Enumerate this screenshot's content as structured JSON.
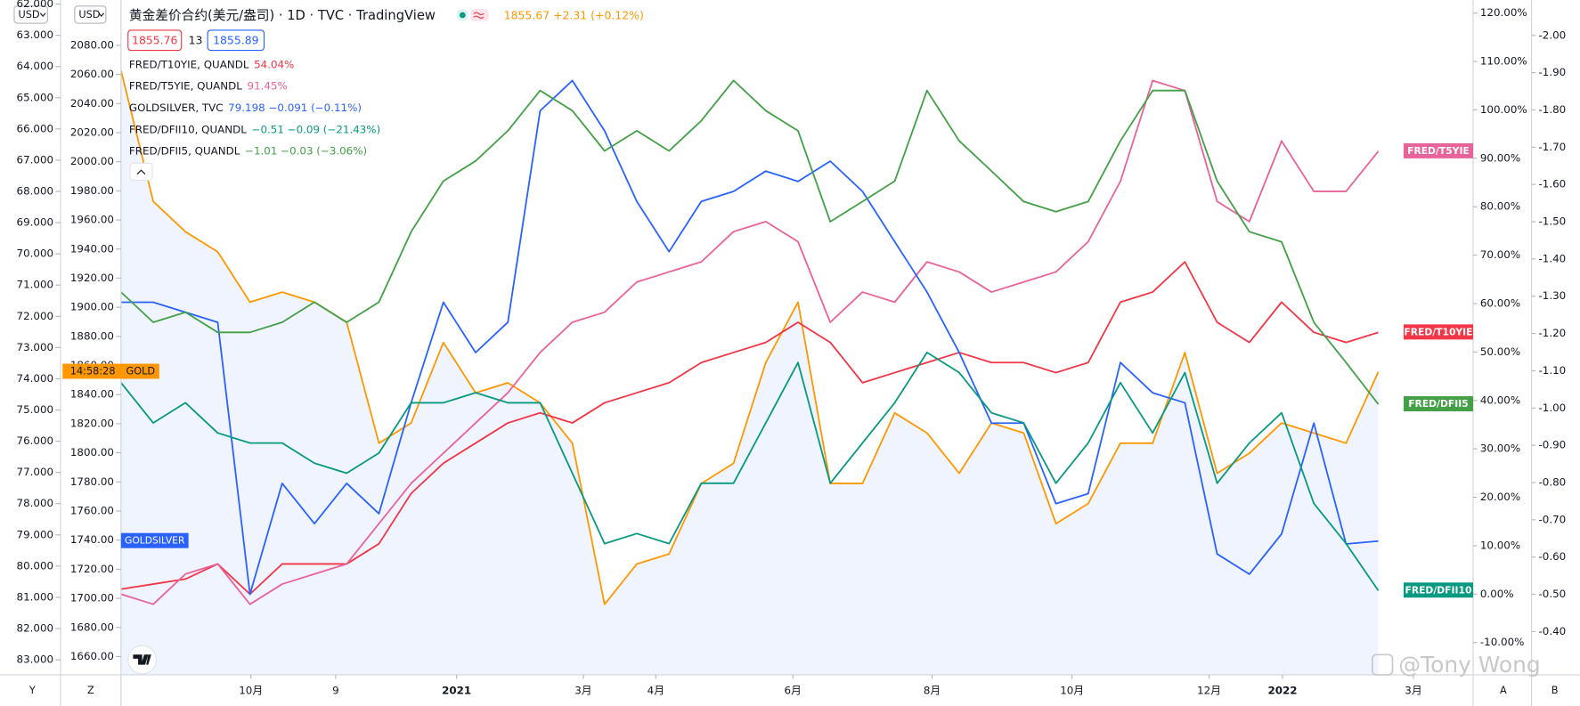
{
  "header": {
    "title": "黄金差价合约(美元/盎司) · 1D · TVC · TradingView",
    "quote": "1855.67  +2.31 (+0.12%)",
    "bid": "1855.76",
    "spread": "13",
    "ask": "1855.89",
    "currency_1": "USD",
    "currency_2": "USD"
  },
  "chart_data": {
    "type": "line",
    "x": [
      0,
      1,
      2,
      3,
      4,
      5,
      6,
      7,
      8,
      9,
      10,
      11,
      12,
      13,
      14,
      15,
      16,
      17,
      18,
      19,
      20,
      21,
      22,
      23,
      24,
      25,
      26,
      27,
      28,
      29,
      30,
      31,
      32,
      33,
      34,
      35,
      36,
      37,
      38,
      39
    ],
    "xlim": [
      0,
      41.94
    ],
    "xticks": [
      {
        "value": 4.03,
        "label": "10月"
      },
      {
        "value": 6.66,
        "label": "9"
      },
      {
        "value": 10.41,
        "label": "2021"
      },
      {
        "value": 14.34,
        "label": "3月"
      },
      {
        "value": 16.59,
        "label": "4月"
      },
      {
        "value": 20.84,
        "label": "6月"
      },
      {
        "value": 25.16,
        "label": "8月"
      },
      {
        "value": 29.5,
        "label": "10月"
      },
      {
        "value": 33.75,
        "label": "12月"
      },
      {
        "value": 36.03,
        "label": "2022"
      },
      {
        "value": 40.09,
        "label": "3月"
      }
    ],
    "grid": false,
    "axes": {
      "goldsilver": {
        "lim": [
          83.48,
          61.87
        ],
        "ticks": [
          {
            "value": 62,
            "label": "62.000"
          },
          {
            "value": 63,
            "label": "63.000"
          },
          {
            "value": 64,
            "label": "64.000"
          },
          {
            "value": 65,
            "label": "65.000"
          },
          {
            "value": 66,
            "label": "66.000"
          },
          {
            "value": 67,
            "label": "67.000"
          },
          {
            "value": 68,
            "label": "68.000"
          },
          {
            "value": 69,
            "label": "69.000"
          },
          {
            "value": 70,
            "label": "70.000"
          },
          {
            "value": 71,
            "label": "71.000"
          },
          {
            "value": 72,
            "label": "72.000"
          },
          {
            "value": 73,
            "label": "73.000"
          },
          {
            "value": 74,
            "label": "74.000"
          },
          {
            "value": 75,
            "label": "75.000"
          },
          {
            "value": 76,
            "label": "76.000"
          },
          {
            "value": 77,
            "label": "77.000"
          },
          {
            "value": 78,
            "label": "78.000"
          },
          {
            "value": 79,
            "label": "79.000"
          },
          {
            "value": 80,
            "label": "80.000"
          },
          {
            "value": 81,
            "label": "81.000"
          },
          {
            "value": 82,
            "label": "82.000"
          },
          {
            "value": 83,
            "label": "83.000"
          }
        ]
      },
      "gold": {
        "lim": [
          1647.47,
          2111.14
        ],
        "ticks": [
          {
            "value": 2080,
            "label": "2080.00"
          },
          {
            "value": 2060,
            "label": "2060.00"
          },
          {
            "value": 2040,
            "label": "2040.00"
          },
          {
            "value": 2020,
            "label": "2020.00"
          },
          {
            "value": 2000,
            "label": "2000.00"
          },
          {
            "value": 1980,
            "label": "1980.00"
          },
          {
            "value": 1960,
            "label": "1960.00"
          },
          {
            "value": 1940,
            "label": "1940.00"
          },
          {
            "value": 1920,
            "label": "1920.00"
          },
          {
            "value": 1900,
            "label": "1900.00"
          },
          {
            "value": 1880,
            "label": "1880.00"
          },
          {
            "value": 1860,
            "label": "1860.00"
          },
          {
            "value": 1840,
            "label": "1840.00"
          },
          {
            "value": 1820,
            "label": "1820.00"
          },
          {
            "value": 1800,
            "label": "1800.00"
          },
          {
            "value": 1780,
            "label": "1780.00"
          },
          {
            "value": 1760,
            "label": "1760.00"
          },
          {
            "value": 1740,
            "label": "1740.00"
          },
          {
            "value": 1720,
            "label": "1720.00"
          },
          {
            "value": 1700,
            "label": "1700.00"
          },
          {
            "value": 1680,
            "label": "1680.00"
          },
          {
            "value": 1660,
            "label": "1660.00"
          }
        ]
      },
      "percent": {
        "lim": [
          -16.66,
          122.7
        ],
        "ticks": [
          {
            "value": 120,
            "label": "120.00%"
          },
          {
            "value": 110,
            "label": "110.00%"
          },
          {
            "value": 100,
            "label": "100.00%"
          },
          {
            "value": 90,
            "label": "90.00%"
          },
          {
            "value": 80,
            "label": "80.00%"
          },
          {
            "value": 70,
            "label": "70.00%"
          },
          {
            "value": 60,
            "label": "60.00%"
          },
          {
            "value": 50,
            "label": "50.00%"
          },
          {
            "value": 40,
            "label": "40.00%"
          },
          {
            "value": 30,
            "label": "30.00%"
          },
          {
            "value": 20,
            "label": "20.00%"
          },
          {
            "value": 10,
            "label": "10.00%"
          },
          {
            "value": 0,
            "label": "0.00%"
          },
          {
            "value": -10,
            "label": "-10.00%"
          }
        ]
      },
      "dfii": {
        "lim": [
          -0.284,
          -2.095
        ],
        "ticks": [
          {
            "value": -2,
            "label": "-2.00"
          },
          {
            "value": -1.9,
            "label": "-1.90"
          },
          {
            "value": -1.8,
            "label": "-1.80"
          },
          {
            "value": -1.7,
            "label": "-1.70"
          },
          {
            "value": -1.6,
            "label": "-1.60"
          },
          {
            "value": -1.5,
            "label": "-1.50"
          },
          {
            "value": -1.4,
            "label": "-1.40"
          },
          {
            "value": -1.3,
            "label": "-1.30"
          },
          {
            "value": -1.2,
            "label": "-1.20"
          },
          {
            "value": -1.1,
            "label": "-1.10"
          },
          {
            "value": -1,
            "label": "-1.00"
          },
          {
            "value": -0.9,
            "label": "-0.90"
          },
          {
            "value": -0.8,
            "label": "-0.80"
          },
          {
            "value": -0.7,
            "label": "-0.70"
          },
          {
            "value": -0.6,
            "label": "-0.60"
          },
          {
            "value": -0.5,
            "label": "-0.50"
          },
          {
            "value": -0.4,
            "label": "-0.40"
          }
        ]
      }
    },
    "series": [
      {
        "name": "GOLD",
        "countdown": "14:58:28",
        "color": "#ff9800",
        "axis": "gold",
        "area": true,
        "values": [
          2062.7,
          1972.7,
          1951.9,
          1938.1,
          1903.5,
          1910.4,
          1903.5,
          1889.7,
          1806.6,
          1820.5,
          1875.8,
          1841.2,
          1848.1,
          1834.3,
          1806.6,
          1695.9,
          1723.6,
          1730.5,
          1778.9,
          1792.8,
          1862.0,
          1903.5,
          1778.9,
          1778.9,
          1827.4,
          1813.6,
          1785.9,
          1820.5,
          1813.6,
          1751.3,
          1765.1,
          1806.6,
          1806.6,
          1868.9,
          1785.9,
          1799.7,
          1820.5,
          1813.6,
          1806.6,
          1855.67
        ]
      },
      {
        "name": "FRED/T10YIE",
        "legend": "FRED/T10YIE, QUANDL",
        "legend_value": "54.04%",
        "color": "#f23645",
        "axis": "percent",
        "values": [
          1.03,
          2.07,
          3.11,
          6.23,
          -0.01,
          6.23,
          6.23,
          6.23,
          10.39,
          20.79,
          27.03,
          31.19,
          35.35,
          37.43,
          35.35,
          39.51,
          41.58,
          43.66,
          47.82,
          49.9,
          51.98,
          56.14,
          51.98,
          43.66,
          45.74,
          47.82,
          49.9,
          47.82,
          47.82,
          45.74,
          47.82,
          60.3,
          62.38,
          68.62,
          56.14,
          51.98,
          60.3,
          54.06,
          51.98,
          54.04
        ]
      },
      {
        "name": "FRED/T5YIE",
        "legend": "FRED/T5YIE, QUANDL",
        "legend_value": "91.45%",
        "color": "#e8639a",
        "axis": "percent",
        "values": [
          -0.01,
          -2.09,
          4.15,
          6.23,
          -2.09,
          2.07,
          4.15,
          6.23,
          14.55,
          22.87,
          29.11,
          35.35,
          41.58,
          49.9,
          56.14,
          58.22,
          64.46,
          66.54,
          68.62,
          74.86,
          76.94,
          72.78,
          56.14,
          62.38,
          60.3,
          68.62,
          66.54,
          62.38,
          64.46,
          66.54,
          72.78,
          85.26,
          106.06,
          103.98,
          81.1,
          76.94,
          93.58,
          83.18,
          83.18,
          91.45
        ]
      },
      {
        "name": "GOLDSILVER",
        "legend": "GOLDSILVER, TVC",
        "legend_value": "79.198  −0.091 (−0.11%)",
        "color": "#2962ff",
        "axis": "goldsilver",
        "values": [
          71.55,
          71.55,
          71.87,
          72.19,
          80.9,
          77.35,
          78.64,
          77.35,
          78.32,
          74.77,
          71.55,
          73.16,
          72.19,
          65.42,
          64.45,
          66.06,
          68.32,
          69.93,
          68.32,
          68.0,
          67.35,
          67.68,
          67.03,
          68.0,
          69.61,
          71.22,
          73.16,
          75.42,
          75.42,
          78.0,
          77.68,
          73.48,
          74.45,
          74.77,
          79.61,
          80.26,
          78.97,
          75.42,
          79.29,
          79.198
        ]
      },
      {
        "name": "FRED/DFII10",
        "legend": "FRED/DFII10, QUANDL",
        "legend_value": "−0.51  −0.09 (−21.43%)",
        "color": "#089981",
        "axis": "dfii",
        "values": [
          -1.068,
          -0.96,
          -1.014,
          -0.933,
          -0.906,
          -0.906,
          -0.852,
          -0.825,
          -0.879,
          -1.014,
          -1.014,
          -1.041,
          -1.014,
          -1.014,
          -0.825,
          -0.636,
          -0.663,
          -0.636,
          -0.798,
          -0.798,
          -0.96,
          -1.122,
          -0.798,
          -0.906,
          -1.014,
          -1.149,
          -1.095,
          -0.987,
          -0.96,
          -0.798,
          -0.906,
          -1.068,
          -0.933,
          -1.095,
          -0.798,
          -0.906,
          -0.987,
          -0.744,
          -0.636,
          -0.51
        ]
      },
      {
        "name": "FRED/DFII5",
        "legend": "FRED/DFII5, QUANDL",
        "legend_value": "−1.01  −0.03 (−3.06%)",
        "color": "#43a047",
        "axis": "dfii",
        "values": [
          -1.311,
          -1.23,
          -1.257,
          -1.203,
          -1.203,
          -1.23,
          -1.284,
          -1.23,
          -1.284,
          -1.473,
          -1.609,
          -1.663,
          -1.744,
          -1.852,
          -1.798,
          -1.69,
          -1.744,
          -1.69,
          -1.771,
          -1.879,
          -1.798,
          -1.744,
          -1.5,
          -1.554,
          -1.609,
          -1.852,
          -1.717,
          -1.636,
          -1.554,
          -1.527,
          -1.554,
          -1.717,
          -1.852,
          -1.852,
          -1.609,
          -1.473,
          -1.446,
          -1.23,
          -1.122,
          -1.01
        ]
      }
    ]
  },
  "footer": {
    "left_1": "Y",
    "left_2": "Z",
    "right_1": "A",
    "right_2": "B"
  },
  "watermark": "@Tony Wong"
}
